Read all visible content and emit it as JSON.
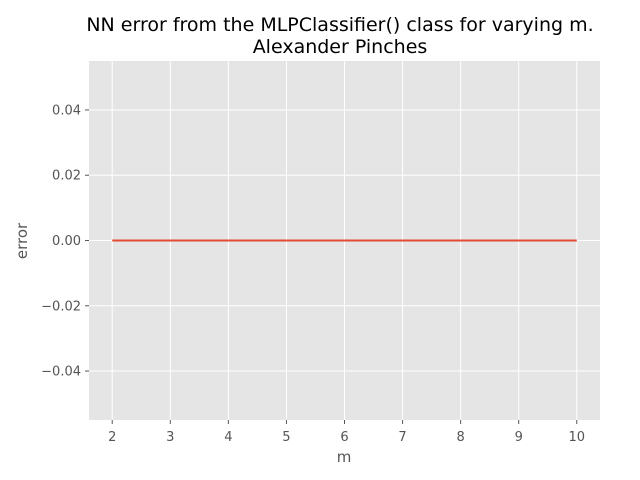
{
  "chart_data": {
    "type": "line",
    "title": "NN error from the MLPClassifier() class for varying m.",
    "subtitle": "Alexander Pinches",
    "xlabel": "m",
    "ylabel": "error",
    "x": [
      2,
      3,
      4,
      5,
      6,
      7,
      8,
      9,
      10
    ],
    "series": [
      {
        "values": [
          0,
          0,
          0,
          0,
          0,
          0,
          0,
          0,
          0
        ],
        "color": "#E24A33"
      }
    ],
    "xlim": [
      1.6,
      10.4
    ],
    "ylim": [
      -0.055,
      0.055
    ],
    "xticks": [
      2,
      3,
      4,
      5,
      6,
      7,
      8,
      9,
      10
    ],
    "xtick_labels": [
      "2",
      "3",
      "4",
      "5",
      "6",
      "7",
      "8",
      "9",
      "10"
    ],
    "yticks": [
      -0.04,
      -0.02,
      0.0,
      0.02,
      0.04
    ],
    "ytick_labels": [
      "−0.04",
      "−0.02",
      "0.00",
      "0.02",
      "0.04"
    ],
    "grid": true,
    "style": {
      "background": "#E5E5E5",
      "grid_color": "#FFFFFF"
    }
  }
}
